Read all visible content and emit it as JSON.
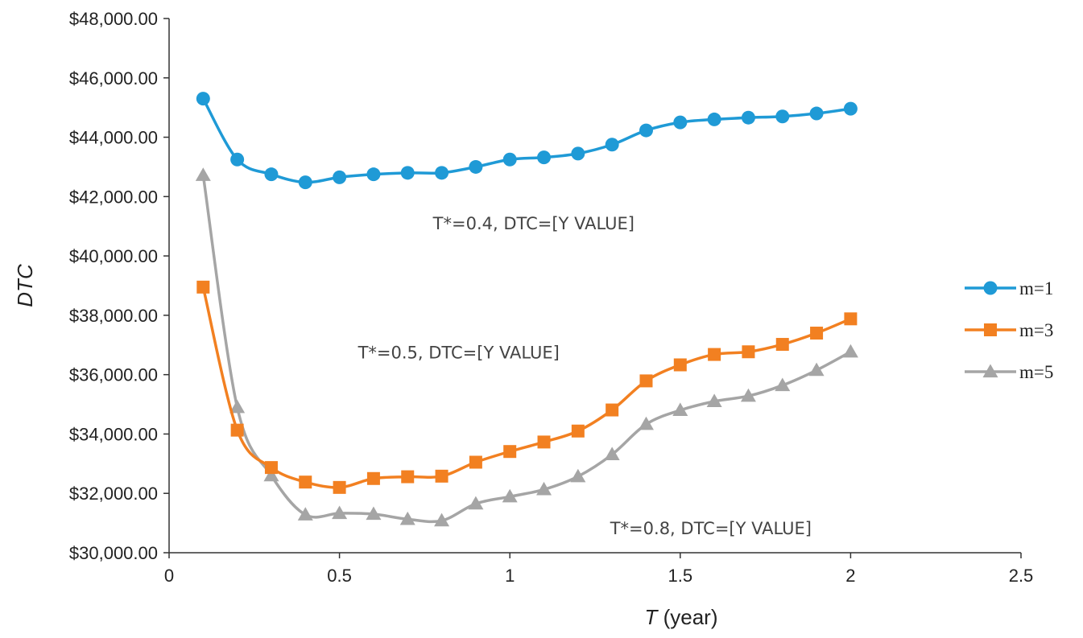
{
  "chart_data": {
    "type": "line",
    "title": "",
    "xlabel": "T (year)",
    "xlabel_italic_part": "T",
    "xlabel_rest": " (year)",
    "ylabel": "DTC",
    "xlim": [
      0,
      2.5
    ],
    "ylim": [
      30000,
      48000
    ],
    "x_ticks": [
      0,
      0.5,
      1,
      1.5,
      2,
      2.5
    ],
    "x_tick_labels": [
      "0",
      "0.5",
      "1",
      "1.5",
      "2",
      "2.5"
    ],
    "y_ticks": [
      30000,
      32000,
      34000,
      36000,
      38000,
      40000,
      42000,
      44000,
      46000,
      48000
    ],
    "y_tick_labels": [
      "$30,000.00",
      "$32,000.00",
      "$34,000.00",
      "$36,000.00",
      "$38,000.00",
      "$40,000.00",
      "$42,000.00",
      "$44,000.00",
      "$46,000.00",
      "$48,000.00"
    ],
    "grid": false,
    "legend_position": "right",
    "x": [
      0.1,
      0.2,
      0.3,
      0.4,
      0.5,
      0.6,
      0.7,
      0.8,
      0.9,
      1.0,
      1.1,
      1.2,
      1.3,
      1.4,
      1.5,
      1.6,
      1.7,
      1.8,
      1.9,
      2.0
    ],
    "series": [
      {
        "name": "m=1",
        "color": "#1f9ad6",
        "marker": "circle",
        "values": [
          45300,
          43250,
          42750,
          42480,
          42650,
          42750,
          42800,
          42800,
          43000,
          43250,
          43320,
          43450,
          43750,
          44230,
          44500,
          44600,
          44660,
          44700,
          44800,
          44960
        ]
      },
      {
        "name": "m=3",
        "color": "#f28021",
        "marker": "square",
        "values": [
          38950,
          34130,
          32870,
          32380,
          32200,
          32500,
          32560,
          32580,
          33050,
          33410,
          33730,
          34100,
          34810,
          35790,
          36330,
          36680,
          36770,
          37020,
          37400,
          37880
        ]
      },
      {
        "name": "m=5",
        "color": "#a5a5a5",
        "marker": "triangle",
        "values": [
          42720,
          34900,
          32600,
          31280,
          31330,
          31300,
          31130,
          31080,
          31650,
          31890,
          32130,
          32570,
          33310,
          34330,
          34800,
          35100,
          35280,
          35640,
          36150,
          36770
        ]
      }
    ],
    "annotations": [
      {
        "text": "T*=0.4, DTC=[Y VALUE]",
        "x": 1.07,
        "y": 40900
      },
      {
        "text": "T*=0.5, DTC=[Y VALUE]",
        "x": 0.85,
        "y": 36550
      },
      {
        "text": "T*=0.8, DTC=[Y VALUE]",
        "x": 1.59,
        "y": 30630
      }
    ]
  }
}
